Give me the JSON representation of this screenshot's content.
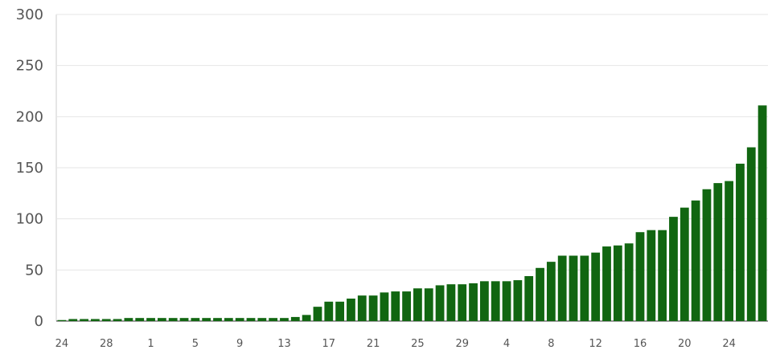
{
  "chart_data": {
    "type": "bar",
    "title": "",
    "xlabel": "",
    "ylabel": "",
    "ylim": [
      0,
      300
    ],
    "yticks": [
      0,
      50,
      100,
      150,
      200,
      250,
      300
    ],
    "grid": true,
    "legend": "none",
    "bar_color": "#116611",
    "x_tick_labels": [
      {
        "index": 0,
        "label": "24"
      },
      {
        "index": 4,
        "label": "28"
      },
      {
        "index": 8,
        "label": "1"
      },
      {
        "index": 12,
        "label": "5"
      },
      {
        "index": 16,
        "label": "9"
      },
      {
        "index": 20,
        "label": "13"
      },
      {
        "index": 24,
        "label": "17"
      },
      {
        "index": 28,
        "label": "21"
      },
      {
        "index": 32,
        "label": "25"
      },
      {
        "index": 36,
        "label": "29"
      },
      {
        "index": 40,
        "label": "4"
      },
      {
        "index": 44,
        "label": "8"
      },
      {
        "index": 48,
        "label": "12"
      },
      {
        "index": 52,
        "label": "16"
      },
      {
        "index": 56,
        "label": "20"
      },
      {
        "index": 60,
        "label": "24"
      }
    ],
    "values": [
      1,
      2,
      2,
      2,
      2,
      2,
      3,
      3,
      3,
      3,
      3,
      3,
      3,
      3,
      3,
      3,
      3,
      3,
      3,
      3,
      3,
      4,
      6,
      14,
      19,
      19,
      22,
      25,
      25,
      28,
      29,
      29,
      32,
      32,
      35,
      36,
      36,
      37,
      39,
      39,
      39,
      40,
      44,
      52,
      58,
      64,
      64,
      64,
      67,
      73,
      74,
      76,
      87,
      89,
      89,
      102,
      111,
      118,
      129,
      135,
      137,
      154,
      170,
      211
    ]
  }
}
